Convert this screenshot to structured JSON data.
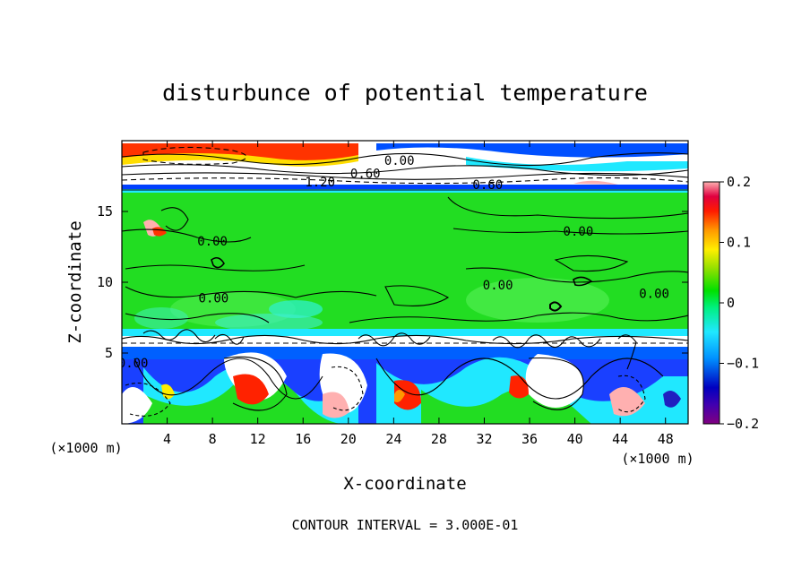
{
  "chart_data": {
    "type": "heatmap",
    "title": "disturbunce of potential temperature",
    "xlabel": "X-coordinate",
    "ylabel": "Z-coordinate",
    "x_unit": "(×1000 m)",
    "z_unit": "(×1000 m)",
    "xlim": [
      0,
      50
    ],
    "ylim": [
      0,
      20
    ],
    "x_ticks": [
      4,
      8,
      12,
      16,
      20,
      24,
      28,
      32,
      36,
      40,
      44,
      48
    ],
    "y_ticks": [
      5,
      10,
      15
    ],
    "colorbar": {
      "min": -0.2,
      "max": 0.2,
      "ticks": [
        "0.2",
        "0.1",
        "0",
        "−0.1",
        "−0.2"
      ],
      "tick_values": [
        0.2,
        0.1,
        0,
        -0.1,
        -0.2
      ]
    },
    "contour_labels": [
      {
        "text": "0.00",
        "x": 24.5,
        "z": 18.6
      },
      {
        "text": "0.60",
        "x": 21.5,
        "z": 17.7
      },
      {
        "text": "1.20",
        "x": 17.5,
        "z": 17.1
      },
      {
        "text": "0.60",
        "x": 32.3,
        "z": 16.9
      },
      {
        "text": "0.00",
        "x": 8.0,
        "z": 12.9
      },
      {
        "text": "0.00",
        "x": 40.3,
        "z": 13.6
      },
      {
        "text": "0.00",
        "x": 8.1,
        "z": 8.9
      },
      {
        "text": "0.00",
        "x": 33.2,
        "z": 9.8
      },
      {
        "text": "0.00",
        "x": 47.0,
        "z": 9.2
      },
      {
        "text": "0.00",
        "x": 1.0,
        "z": 4.3
      }
    ],
    "footer": "CONTOUR INTERVAL = 3.000E-01"
  },
  "colors": {
    "palette": [
      "#800080",
      "#2020c0",
      "#0070ff",
      "#20e0ff",
      "#00ee00",
      "#30cc30",
      "#ffee00",
      "#ff9900",
      "#ff2200",
      "#d00030",
      "#ffb0b0"
    ]
  }
}
